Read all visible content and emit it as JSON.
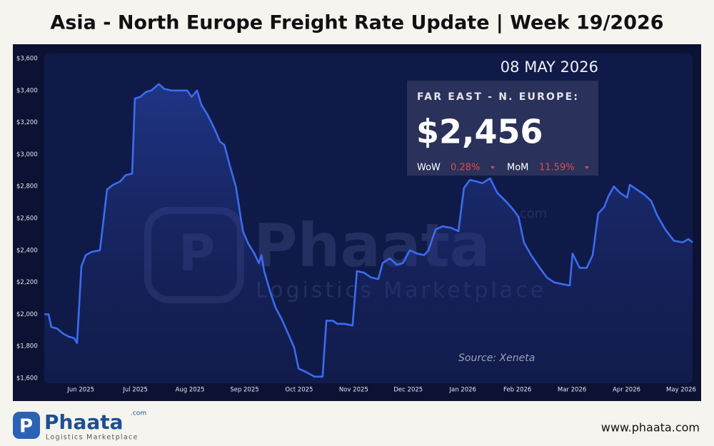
{
  "header": {
    "title": "Asia - North Europe Freight Rate Update | Week 19/2026"
  },
  "chart_data": {
    "type": "line",
    "color": "#3b6cf0",
    "xlim": [
      5.33,
      17.21
    ],
    "xticks": [
      {
        "value": 6,
        "label": "Jun 2025"
      },
      {
        "value": 7,
        "label": "Jul 2025"
      },
      {
        "value": 8,
        "label": "Aug 2025"
      },
      {
        "value": 9,
        "label": "Sep 2025"
      },
      {
        "value": 10,
        "label": "Oct 2025"
      },
      {
        "value": 11,
        "label": "Nov 2025"
      },
      {
        "value": 12,
        "label": "Dec 2025"
      },
      {
        "value": 13,
        "label": "Jan 2026"
      },
      {
        "value": 14,
        "label": "Feb 2026"
      },
      {
        "value": 15,
        "label": "Mar 2026"
      },
      {
        "value": 16,
        "label": "Apr 2026"
      },
      {
        "value": 17,
        "label": "May 2026"
      }
    ],
    "ylim": [
      1600,
      3600
    ],
    "yticks": [
      {
        "value": 1600,
        "label": "$1,600"
      },
      {
        "value": 1800,
        "label": "$1,800"
      },
      {
        "value": 2000,
        "label": "$2,000"
      },
      {
        "value": 2200,
        "label": "$2,200"
      },
      {
        "value": 2400,
        "label": "$2,400"
      },
      {
        "value": 2600,
        "label": "$2,600"
      },
      {
        "value": 2800,
        "label": "$2,800"
      },
      {
        "value": 3000,
        "label": "$3,000"
      },
      {
        "value": 3200,
        "label": "$3,200"
      },
      {
        "value": 3400,
        "label": "$3,400"
      },
      {
        "value": 3600,
        "label": "$3,600"
      }
    ],
    "x": [
      5.33,
      5.41,
      5.46,
      5.57,
      5.67,
      5.78,
      5.88,
      5.93,
      6.01,
      6.09,
      6.2,
      6.35,
      6.48,
      6.59,
      6.72,
      6.82,
      6.94,
      6.99,
      7.09,
      7.19,
      7.29,
      7.43,
      7.53,
      7.66,
      7.82,
      7.95,
      8.03,
      8.13,
      8.21,
      8.32,
      8.45,
      8.55,
      8.63,
      8.73,
      8.84,
      8.97,
      9.07,
      9.18,
      9.26,
      9.31,
      9.36,
      9.47,
      9.57,
      9.68,
      9.81,
      9.91,
      9.99,
      10.12,
      10.28,
      10.43,
      10.5,
      10.62,
      10.7,
      10.83,
      10.98,
      11.06,
      11.19,
      11.32,
      11.45,
      11.53,
      11.66,
      11.79,
      11.9,
      12.03,
      12.16,
      12.29,
      12.37,
      12.5,
      12.63,
      12.79,
      12.92,
      13.02,
      13.13,
      13.26,
      13.36,
      13.5,
      13.63,
      13.78,
      13.91,
      14.02,
      14.12,
      14.25,
      14.41,
      14.54,
      14.67,
      14.8,
      14.96,
      15.01,
      15.14,
      15.27,
      15.38,
      15.48,
      15.59,
      15.67,
      15.77,
      15.88,
      16.01,
      16.06,
      16.19,
      16.32,
      16.45,
      16.56,
      16.71,
      16.87,
      17.03,
      17.13,
      17.21
    ],
    "values": [
      2000,
      2000,
      1920,
      1910,
      1880,
      1860,
      1850,
      1820,
      2300,
      2370,
      2390,
      2400,
      2780,
      2810,
      2830,
      2870,
      2880,
      3350,
      3360,
      3390,
      3400,
      3440,
      3410,
      3400,
      3400,
      3400,
      3360,
      3400,
      3310,
      3250,
      3160,
      3080,
      3060,
      2930,
      2800,
      2520,
      2440,
      2380,
      2320,
      2370,
      2270,
      2140,
      2040,
      1970,
      1870,
      1790,
      1660,
      1640,
      1610,
      1610,
      1960,
      1960,
      1940,
      1940,
      1930,
      2270,
      2260,
      2230,
      2220,
      2320,
      2350,
      2310,
      2320,
      2400,
      2380,
      2370,
      2400,
      2530,
      2550,
      2540,
      2520,
      2790,
      2840,
      2830,
      2820,
      2850,
      2760,
      2710,
      2660,
      2610,
      2450,
      2370,
      2290,
      2230,
      2200,
      2190,
      2180,
      2380,
      2290,
      2290,
      2370,
      2630,
      2670,
      2740,
      2800,
      2760,
      2730,
      2810,
      2780,
      2750,
      2710,
      2620,
      2530,
      2460,
      2450,
      2470,
      2450
    ]
  },
  "date": "08 MAY 2026",
  "info_box": {
    "route": "FAR EAST - N. EUROPE:",
    "rate": "$2,456",
    "wow_label": "WoW",
    "wow": "0.28%",
    "mom_label": "MoM",
    "mom": "11.59%"
  },
  "source": "Source: Xeneta",
  "watermark": {
    "name": "Phaata",
    "domain": ".com",
    "tagline": "Logistics Marketplace"
  },
  "footer": {
    "logo": "Phaata",
    "logo_domain": ".com",
    "logo_tagline": "Logistics Marketplace",
    "url": "www.phaata.com"
  }
}
